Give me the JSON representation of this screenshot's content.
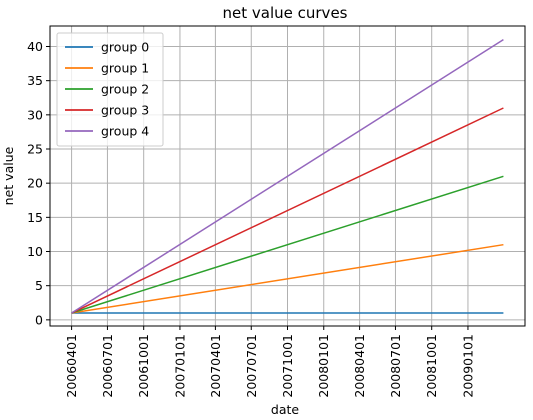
{
  "chart_data": {
    "type": "line",
    "title": "net value curves",
    "xlabel": "date",
    "ylabel": "net value",
    "x_ticks": [
      "20060401",
      "20060701",
      "20061001",
      "20070101",
      "20070401",
      "20070701",
      "20071001",
      "20080101",
      "20080401",
      "20080701",
      "20081001",
      "20090101"
    ],
    "x": [
      "20060401",
      "20090401"
    ],
    "y_ticks": [
      0,
      5,
      10,
      15,
      20,
      25,
      30,
      35,
      40
    ],
    "ylim": [
      -0.9,
      43
    ],
    "grid": true,
    "legend": "top-left",
    "series": [
      {
        "name": "group 0",
        "color": "#1f77b4",
        "values": [
          1,
          1
        ]
      },
      {
        "name": "group 1",
        "color": "#ff7f0e",
        "values": [
          1,
          11
        ]
      },
      {
        "name": "group 2",
        "color": "#2ca02c",
        "values": [
          1,
          21
        ]
      },
      {
        "name": "group 3",
        "color": "#d62728",
        "values": [
          1,
          31
        ]
      },
      {
        "name": "group 4",
        "color": "#9467bd",
        "values": [
          1,
          41
        ]
      }
    ]
  }
}
